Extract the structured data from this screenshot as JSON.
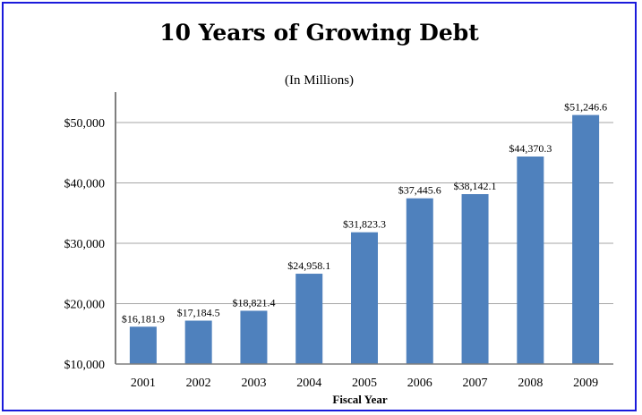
{
  "chart_data": {
    "type": "bar",
    "title": "10 Years of Growing Debt",
    "subtitle": "(In Millions)",
    "xlabel": "Fiscal Year",
    "ylabel": "",
    "categories": [
      "2001",
      "2002",
      "2003",
      "2004",
      "2005",
      "2006",
      "2007",
      "2008",
      "2009"
    ],
    "values": [
      16181.9,
      17184.5,
      18821.4,
      24958.1,
      31823.3,
      37445.6,
      38142.1,
      44370.3,
      51246.6
    ],
    "data_labels": [
      "$16,181.9",
      "$17,184.5",
      "$18,821.4",
      "$24,958.1",
      "$31,823.3",
      "$37,445.6",
      "$38,142.1",
      "$44,370.3",
      "$51,246.6"
    ],
    "ylim": [
      10000,
      55000
    ],
    "yticks": [
      10000,
      20000,
      30000,
      40000,
      50000
    ],
    "ytick_labels": [
      "$10,000",
      "$20,000",
      "$30,000",
      "$40,000",
      "$50,000"
    ],
    "grid": true,
    "legend": "none",
    "colors": {
      "bar": "#4f81bd",
      "grid": "#a6a6a6",
      "axis": "#7f7f7f",
      "border": "#1a1adb"
    }
  }
}
